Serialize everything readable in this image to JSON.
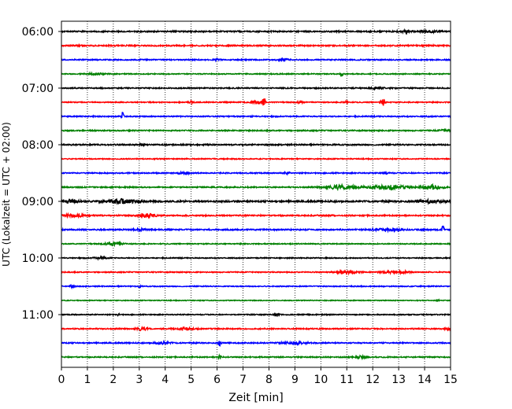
{
  "chart_data": {
    "type": "line",
    "xlabel": "Zeit  [min]",
    "ylabel": "UTC (Lokalzeit = UTC + 02:00)",
    "xlim": [
      0,
      15
    ],
    "x_ticks": [
      "0",
      "1",
      "2",
      "3",
      "4",
      "5",
      "6",
      "7",
      "8",
      "9",
      "10",
      "11",
      "12",
      "13",
      "14",
      "15"
    ],
    "y_ticks": [
      {
        "trace": 0,
        "label": "06:00"
      },
      {
        "trace": 4,
        "label": "07:00"
      },
      {
        "trace": 8,
        "label": "08:00"
      },
      {
        "trace": 12,
        "label": "09:00"
      },
      {
        "trace": 16,
        "label": "10:00"
      },
      {
        "trace": 20,
        "label": "11:00"
      }
    ],
    "grid": "vertical-dotted",
    "trace_colors": [
      "#000000",
      "#ff0000",
      "#0000ff",
      "#008000"
    ],
    "trace_minutes": 15,
    "traces": [
      {
        "start": "06:00",
        "noise": 0.8,
        "bursts": [
          {
            "x": 13.3,
            "amp": 1.2,
            "w": 0.3
          },
          {
            "x": 14.2,
            "amp": 1.0,
            "w": 0.4
          }
        ]
      },
      {
        "start": "06:15",
        "noise": 0.8,
        "bursts": []
      },
      {
        "start": "06:30",
        "noise": 0.7,
        "bursts": [
          {
            "x": 6.0,
            "amp": 1.2,
            "w": 0.1
          },
          {
            "x": 8.5,
            "amp": 1.5,
            "w": 0.2
          }
        ]
      },
      {
        "start": "06:45",
        "noise": 0.6,
        "bursts": [
          {
            "x": 1.3,
            "amp": 1.0,
            "w": 0.3
          },
          {
            "x": 10.8,
            "amp": 3.0,
            "w": 0.05
          }
        ]
      },
      {
        "start": "07:00",
        "noise": 0.7,
        "bursts": [
          {
            "x": 12.2,
            "amp": 1.2,
            "w": 0.2
          }
        ]
      },
      {
        "start": "07:15",
        "noise": 0.6,
        "bursts": [
          {
            "x": 5.0,
            "amp": 1.5,
            "w": 0.1
          },
          {
            "x": 7.5,
            "amp": 2.0,
            "w": 0.2
          },
          {
            "x": 7.8,
            "amp": 8.0,
            "w": 0.05
          },
          {
            "x": 9.2,
            "amp": 1.5,
            "w": 0.1
          },
          {
            "x": 11.0,
            "amp": 1.5,
            "w": 0.1
          },
          {
            "x": 12.4,
            "amp": 4.5,
            "w": 0.08
          }
        ]
      },
      {
        "start": "07:30",
        "noise": 0.7,
        "bursts": [
          {
            "x": 2.35,
            "amp": 5.0,
            "w": 0.05
          }
        ]
      },
      {
        "start": "07:45",
        "noise": 0.7,
        "bursts": [
          {
            "x": 14.8,
            "amp": 1.2,
            "w": 0.2
          }
        ]
      },
      {
        "start": "08:00",
        "noise": 0.8,
        "bursts": [
          {
            "x": 3.1,
            "amp": 1.5,
            "w": 0.1
          }
        ]
      },
      {
        "start": "08:15",
        "noise": 0.6,
        "bursts": []
      },
      {
        "start": "08:30",
        "noise": 0.7,
        "bursts": [
          {
            "x": 4.7,
            "amp": 1.2,
            "w": 0.2
          },
          {
            "x": 8.7,
            "amp": 1.3,
            "w": 0.1
          },
          {
            "x": 12.5,
            "amp": 1.3,
            "w": 0.1
          }
        ]
      },
      {
        "start": "08:45",
        "noise": 0.7,
        "bursts": [
          {
            "x": 10.8,
            "amp": 2.5,
            "w": 0.6
          },
          {
            "x": 12.6,
            "amp": 2.5,
            "w": 0.7
          },
          {
            "x": 14.3,
            "amp": 2.5,
            "w": 0.4
          }
        ]
      },
      {
        "start": "09:00",
        "noise": 1.0,
        "bursts": [
          {
            "x": 0.3,
            "amp": 2.0,
            "w": 0.4
          },
          {
            "x": 2.3,
            "amp": 2.5,
            "w": 0.6
          },
          {
            "x": 14.3,
            "amp": 1.5,
            "w": 0.5
          }
        ]
      },
      {
        "start": "09:15",
        "noise": 0.8,
        "bursts": [
          {
            "x": 0.5,
            "amp": 1.5,
            "w": 0.4
          },
          {
            "x": 3.3,
            "amp": 3.0,
            "w": 0.3
          }
        ]
      },
      {
        "start": "09:30",
        "noise": 0.8,
        "bursts": [
          {
            "x": 3.0,
            "amp": 1.5,
            "w": 0.2
          },
          {
            "x": 12.6,
            "amp": 1.3,
            "w": 0.5
          },
          {
            "x": 14.7,
            "amp": 4.0,
            "w": 0.05
          }
        ]
      },
      {
        "start": "09:45",
        "noise": 0.6,
        "bursts": [
          {
            "x": 2.0,
            "amp": 2.0,
            "w": 0.3
          }
        ]
      },
      {
        "start": "10:00",
        "noise": 0.6,
        "bursts": [
          {
            "x": 1.5,
            "amp": 1.0,
            "w": 0.3
          }
        ]
      },
      {
        "start": "10:15",
        "noise": 0.6,
        "bursts": [
          {
            "x": 11.0,
            "amp": 1.8,
            "w": 0.4
          },
          {
            "x": 12.9,
            "amp": 1.5,
            "w": 0.5
          }
        ]
      },
      {
        "start": "10:30",
        "noise": 0.6,
        "bursts": [
          {
            "x": 0.4,
            "amp": 2.0,
            "w": 0.08
          },
          {
            "x": 3.0,
            "amp": 1.5,
            "w": 0.05
          }
        ]
      },
      {
        "start": "10:45",
        "noise": 0.5,
        "bursts": [
          {
            "x": 14.5,
            "amp": 1.5,
            "w": 0.05
          }
        ]
      },
      {
        "start": "11:00",
        "noise": 0.6,
        "bursts": [
          {
            "x": 2.2,
            "amp": 1.2,
            "w": 0.05
          },
          {
            "x": 8.3,
            "amp": 1.0,
            "w": 0.1
          }
        ]
      },
      {
        "start": "11:15",
        "noise": 0.7,
        "bursts": [
          {
            "x": 3.1,
            "amp": 1.8,
            "w": 0.2
          },
          {
            "x": 4.8,
            "amp": 1.4,
            "w": 0.3
          },
          {
            "x": 14.9,
            "amp": 1.5,
            "w": 0.1
          }
        ]
      },
      {
        "start": "11:30",
        "noise": 0.7,
        "bursts": [
          {
            "x": 3.9,
            "amp": 1.3,
            "w": 0.3
          },
          {
            "x": 6.1,
            "amp": 4.0,
            "w": 0.05
          },
          {
            "x": 9.0,
            "amp": 1.4,
            "w": 0.5
          }
        ]
      },
      {
        "start": "11:45",
        "noise": 0.7,
        "bursts": [
          {
            "x": 6.1,
            "amp": 4.5,
            "w": 0.05
          },
          {
            "x": 11.5,
            "amp": 1.3,
            "w": 0.2
          }
        ]
      }
    ]
  }
}
